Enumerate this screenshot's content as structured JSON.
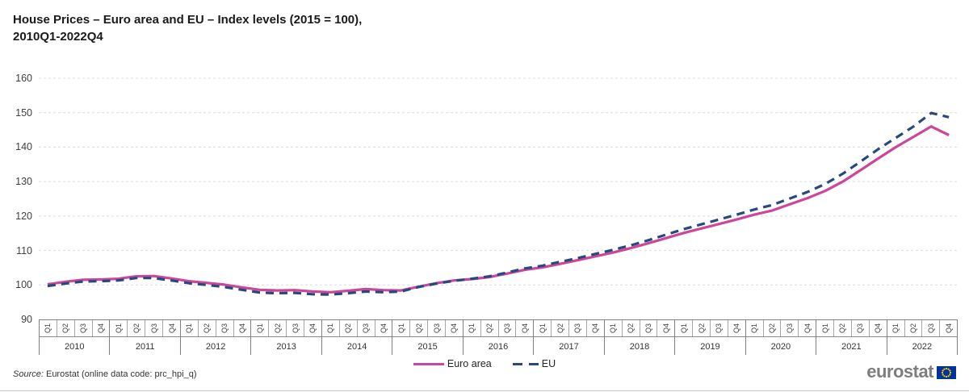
{
  "title": {
    "line1": "House Prices – Euro area and EU – Index levels (2015 = 100),",
    "line2": "2010Q1-2022Q4"
  },
  "source": {
    "label": "Source:",
    "text": " Eurostat (online data code: prc_hpi_q)"
  },
  "logo": {
    "text": "eurostat",
    "flag_blue": "#003399",
    "flag_star_color": "#ffcc00"
  },
  "legend": {
    "position": "bottom"
  },
  "colors": {
    "euro_area_line": "#cc4699",
    "eu_line": "#26497e",
    "gridline": "#dcdcdc",
    "axis_line": "#808080"
  },
  "chart_data": {
    "type": "line",
    "title": "House Prices – Euro area and EU – Index levels (2015 = 100), 2010Q1-2022Q4",
    "xlabel": "",
    "ylabel": "",
    "ylim": [
      90,
      160
    ],
    "y_ticks": [
      90,
      100,
      110,
      120,
      130,
      140,
      150,
      160
    ],
    "grid": "horizontal-dashed",
    "legend_position": "bottom",
    "years": [
      2010,
      2011,
      2012,
      2013,
      2014,
      2015,
      2016,
      2017,
      2018,
      2019,
      2020,
      2021,
      2022
    ],
    "quarter_labels": [
      "Q1",
      "Q2",
      "Q3",
      "Q4"
    ],
    "series": [
      {
        "name": "Euro area",
        "color": "#cc4699",
        "dash": false,
        "values": [
          100.2,
          100.9,
          101.5,
          101.6,
          101.8,
          102.5,
          102.6,
          101.9,
          101.1,
          100.6,
          100.1,
          99.3,
          98.6,
          98.4,
          98.5,
          98.1,
          97.9,
          98.3,
          98.8,
          98.5,
          98.4,
          99.5,
          100.5,
          101.3,
          101.7,
          102.3,
          103.3,
          104.4,
          105.1,
          106.1,
          107.2,
          108.3,
          109.4,
          110.7,
          112.1,
          113.6,
          115.1,
          116.4,
          117.7,
          119.0,
          120.4,
          121.6,
          123.4,
          125.2,
          127.3,
          130.0,
          133.3,
          136.7,
          140.0,
          143.0,
          146.0,
          143.5
        ]
      },
      {
        "name": "EU",
        "color": "#26497e",
        "dash": true,
        "values": [
          99.7,
          100.4,
          101.0,
          101.1,
          101.3,
          102.0,
          102.0,
          101.3,
          100.5,
          100.0,
          99.4,
          98.6,
          97.8,
          97.6,
          97.7,
          97.3,
          97.2,
          97.6,
          98.1,
          97.9,
          98.1,
          99.4,
          100.4,
          101.2,
          101.8,
          102.5,
          103.6,
          104.8,
          105.6,
          106.7,
          107.8,
          109.0,
          110.2,
          111.5,
          113.0,
          114.6,
          116.2,
          117.6,
          119.0,
          120.4,
          121.9,
          123.2,
          125.1,
          127.0,
          129.3,
          132.3,
          135.8,
          139.4,
          142.7,
          146.0,
          149.9,
          148.7
        ]
      }
    ]
  }
}
